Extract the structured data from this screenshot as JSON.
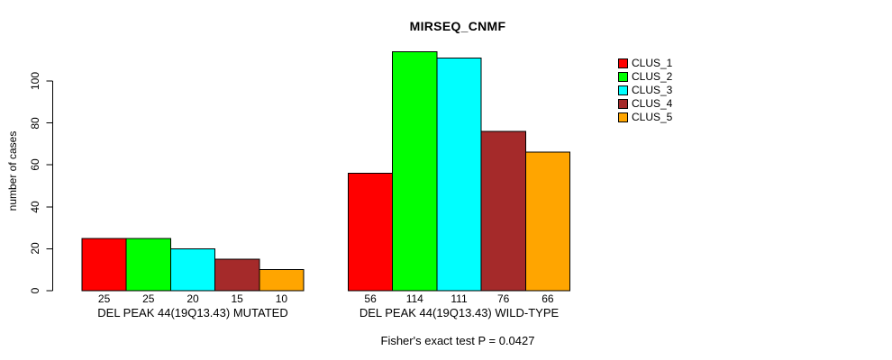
{
  "chart_data": {
    "type": "bar",
    "title": "MIRSEQ_CNMF",
    "ylabel": "number of cases",
    "xlabel": "",
    "ylim": [
      0,
      120
    ],
    "yticks": [
      0,
      20,
      40,
      60,
      80,
      100
    ],
    "categories": [
      "DEL PEAK 44(19Q13.43) MUTATED",
      "DEL PEAK 44(19Q13.43) WILD-TYPE"
    ],
    "series": [
      {
        "name": "CLUS_1",
        "color": "#FF0000",
        "values": [
          25,
          56
        ]
      },
      {
        "name": "CLUS_2",
        "color": "#00FF00",
        "values": [
          25,
          114
        ]
      },
      {
        "name": "CLUS_3",
        "color": "#00FFFF",
        "values": [
          20,
          111
        ]
      },
      {
        "name": "CLUS_4",
        "color": "#A52A2A",
        "values": [
          15,
          76
        ]
      },
      {
        "name": "CLUS_5",
        "color": "#FFA500",
        "values": [
          10,
          66
        ]
      }
    ],
    "show_bar_value_labels": true,
    "annotation": "Fisher's exact test P = 0.0427",
    "legend_position": "right",
    "grid": false,
    "background": "#FFFFFF",
    "bar_border_color": "#000000",
    "axis_color": "#000000"
  }
}
